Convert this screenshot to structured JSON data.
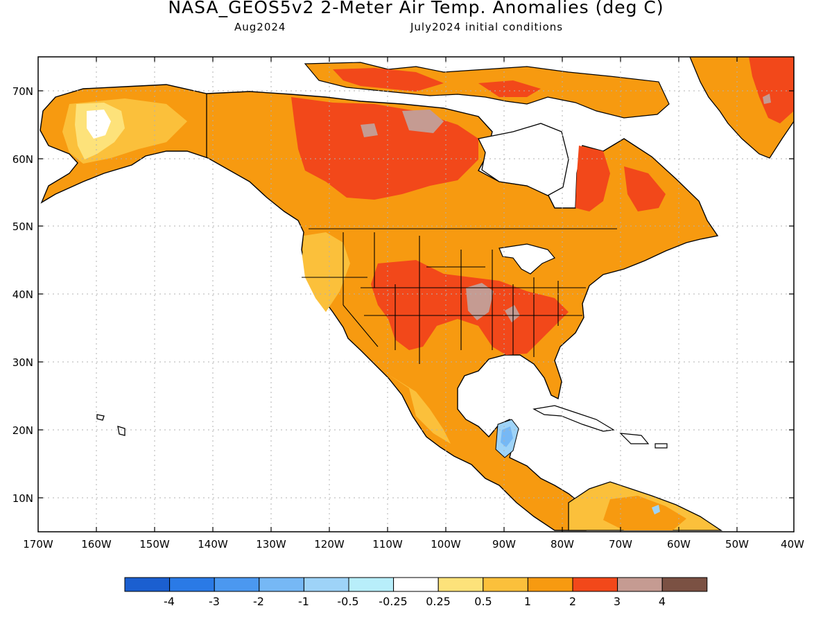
{
  "header": {
    "title": "NASA_GEOS5v2 2-Meter Air Temp. Anomalies (deg C)",
    "subtitle_left": "Aug2024",
    "subtitle_right": "July2024 initial conditions"
  },
  "map": {
    "lat_labels": [
      "70N",
      "60N",
      "50N",
      "40N",
      "30N",
      "20N",
      "10N"
    ],
    "lon_labels": [
      "170W",
      "160W",
      "150W",
      "140W",
      "130W",
      "120W",
      "110W",
      "100W",
      "90W",
      "80W",
      "70W",
      "60W",
      "50W",
      "40W"
    ],
    "grid": "dotted"
  },
  "colorbar": {
    "colors": [
      "#1b5fd0",
      "#2a7ae6",
      "#4b98f0",
      "#76b8f5",
      "#9ed3f8",
      "#b8eefa",
      "#ffffff",
      "#fde27a",
      "#fbc03b",
      "#f79a10",
      "#f2481a",
      "#c59b92",
      "#7b5143"
    ],
    "labels": [
      "-4",
      "-3",
      "-2",
      "-1",
      "-0.5",
      "-0.25",
      "0.25",
      "0.5",
      "1",
      "2",
      "3",
      "4"
    ]
  }
}
